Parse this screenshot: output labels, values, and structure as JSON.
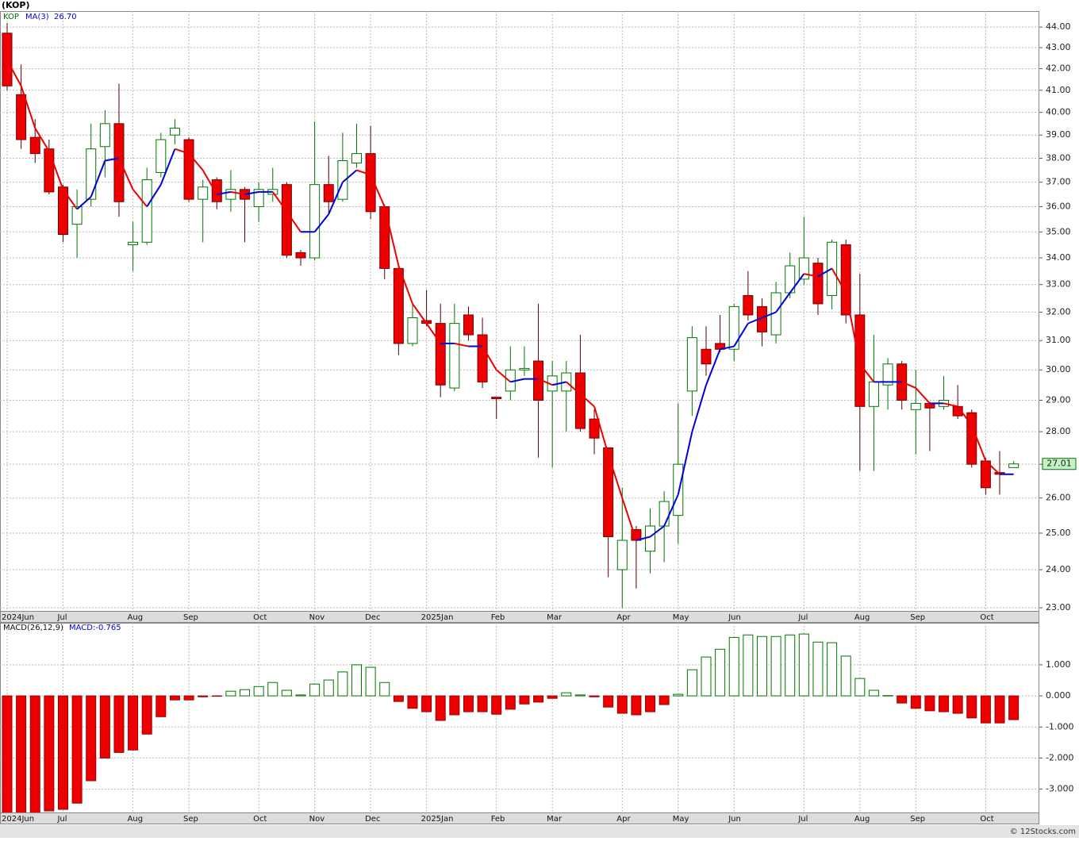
{
  "chart_data": [
    {
      "type": "candlestick",
      "title": "(KOP)",
      "symbol": "KOP",
      "categories": [
        "2024Jun",
        null,
        null,
        null,
        "Jul",
        null,
        null,
        null,
        null,
        "Aug",
        null,
        null,
        null,
        "Sep",
        null,
        null,
        null,
        null,
        "Oct",
        null,
        null,
        null,
        "Nov",
        null,
        null,
        null,
        "Dec",
        null,
        null,
        null,
        "2025Jan",
        null,
        null,
        null,
        null,
        "Feb",
        null,
        null,
        null,
        "Mar",
        null,
        null,
        null,
        null,
        "Apr",
        null,
        null,
        null,
        "May",
        null,
        null,
        null,
        "Jun",
        null,
        null,
        null,
        null,
        "Jul",
        null,
        null,
        null,
        "Aug",
        null,
        null,
        null,
        "Sep",
        null,
        null,
        null,
        null,
        "Oct",
        null,
        null
      ],
      "open": [
        43.7,
        40.8,
        38.9,
        38.4,
        36.8,
        35.3,
        36.3,
        38.5,
        39.5,
        34.5,
        34.6,
        37.4,
        39.0,
        38.8,
        36.3,
        37.1,
        36.3,
        36.7,
        36.0,
        36.5,
        36.9,
        34.2,
        34.0,
        36.9,
        36.3,
        37.8,
        38.2,
        36.0,
        33.6,
        30.9,
        31.7,
        31.6,
        29.4,
        31.9,
        31.2,
        29.1,
        29.3,
        30.0,
        30.3,
        29.3,
        29.3,
        29.9,
        28.4,
        27.5,
        24.0,
        25.1,
        24.5,
        25.2,
        25.5,
        29.3,
        30.7,
        30.9,
        30.7,
        32.6,
        32.2,
        31.2,
        32.7,
        33.2,
        33.8,
        32.6,
        34.5,
        31.9,
        28.8,
        29.5,
        30.2,
        28.7,
        28.9,
        28.8,
        28.8,
        28.6,
        27.1,
        26.75,
        26.9
      ],
      "high": [
        44.2,
        42.2,
        39.7,
        38.8,
        36.9,
        36.7,
        39.5,
        40.1,
        41.3,
        35.4,
        37.6,
        39.1,
        39.7,
        38.9,
        37.1,
        37.2,
        37.5,
        36.8,
        37.0,
        37.6,
        37.0,
        34.3,
        39.6,
        38.1,
        39.1,
        39.5,
        39.4,
        36.1,
        33.7,
        32.3,
        32.8,
        32.3,
        32.3,
        32.2,
        31.8,
        29.1,
        30.8,
        30.8,
        32.3,
        30.3,
        30.3,
        31.2,
        28.7,
        27.5,
        26.3,
        25.2,
        25.7,
        26.2,
        28.9,
        31.5,
        31.5,
        31.9,
        32.3,
        33.5,
        32.5,
        33.1,
        34.2,
        35.6,
        34.0,
        34.7,
        34.7,
        33.4,
        31.2,
        30.4,
        30.3,
        30.0,
        28.95,
        29.8,
        29.5,
        28.7,
        27.2,
        27.4,
        27.1
      ],
      "low": [
        41.0,
        38.4,
        37.8,
        36.5,
        34.6,
        34.0,
        36.0,
        37.2,
        35.6,
        33.5,
        34.5,
        37.2,
        38.6,
        36.2,
        34.6,
        35.9,
        35.8,
        34.6,
        35.4,
        36.2,
        34.0,
        33.7,
        33.9,
        35.7,
        36.2,
        37.6,
        35.5,
        33.2,
        30.5,
        30.8,
        31.5,
        29.1,
        29.3,
        31.0,
        29.4,
        28.4,
        29.0,
        29.8,
        27.2,
        26.9,
        28.0,
        28.0,
        27.3,
        23.8,
        23.0,
        23.5,
        23.9,
        24.2,
        24.7,
        28.5,
        29.8,
        30.6,
        30.3,
        31.7,
        30.8,
        30.9,
        32.5,
        33.0,
        31.9,
        32.1,
        31.6,
        26.8,
        26.8,
        28.7,
        28.7,
        27.3,
        27.4,
        28.7,
        28.4,
        26.9,
        26.1,
        26.1,
        26.9
      ],
      "close": [
        41.2,
        38.8,
        38.2,
        36.6,
        34.9,
        36.0,
        38.4,
        39.5,
        36.2,
        34.6,
        37.1,
        38.8,
        39.3,
        36.3,
        36.8,
        36.2,
        36.7,
        36.3,
        36.7,
        36.7,
        34.1,
        34.0,
        36.9,
        36.2,
        37.9,
        38.2,
        35.8,
        33.6,
        30.9,
        31.8,
        31.6,
        29.5,
        31.6,
        31.2,
        29.6,
        29.05,
        30.0,
        30.05,
        29.0,
        29.8,
        29.9,
        28.1,
        27.8,
        24.9,
        24.8,
        24.8,
        25.2,
        25.9,
        27.0,
        31.1,
        30.2,
        30.7,
        32.2,
        31.9,
        31.3,
        32.7,
        33.7,
        34.0,
        32.3,
        34.6,
        31.9,
        28.8,
        29.6,
        30.2,
        29.0,
        28.9,
        28.75,
        29.0,
        28.5,
        27.0,
        26.3,
        26.7,
        27.01
      ],
      "last_price_label": "27.01",
      "up_color": "#007700",
      "down_color": "#ee0000",
      "ma": {
        "name": "MA(3)",
        "last_label": "26.70",
        "rising_color": "#0000dd",
        "falling_color": "#ee0000",
        "values": [
          42.4,
          41.2,
          39.3,
          38.3,
          36.7,
          35.9,
          36.4,
          37.9,
          38.0,
          36.7,
          36.0,
          36.9,
          38.4,
          38.2,
          37.5,
          36.5,
          36.6,
          36.5,
          36.6,
          36.6,
          35.8,
          35.0,
          35.0,
          35.7,
          37.0,
          37.5,
          37.3,
          36.0,
          33.7,
          32.3,
          31.6,
          30.9,
          30.9,
          30.8,
          30.8,
          30.0,
          29.6,
          29.7,
          29.7,
          29.5,
          29.6,
          29.2,
          28.8,
          27.3,
          26.0,
          24.8,
          24.9,
          25.2,
          26.1,
          28.0,
          29.5,
          30.7,
          30.8,
          31.6,
          31.8,
          32.0,
          32.7,
          33.4,
          33.3,
          33.6,
          32.7,
          30.2,
          29.6,
          29.6,
          29.6,
          29.4,
          28.9,
          28.9,
          28.8,
          28.2,
          27.1,
          26.7,
          26.7
        ]
      },
      "log_scale": true,
      "grid": true,
      "ylim": [
        22.92,
        44.79
      ],
      "yticks": [
        {
          "value": 23,
          "label": "23.00"
        },
        {
          "value": 24,
          "label": "24.00"
        },
        {
          "value": 25,
          "label": "25.00"
        },
        {
          "value": 26,
          "label": "26.00"
        },
        {
          "value": 27,
          "label": "27.00"
        },
        {
          "value": 28,
          "label": "28.00"
        },
        {
          "value": 29,
          "label": "29.00"
        },
        {
          "value": 30,
          "label": "30.00"
        },
        {
          "value": 31,
          "label": "31.00"
        },
        {
          "value": 32,
          "label": "32.00"
        },
        {
          "value": 33,
          "label": "33.00"
        },
        {
          "value": 34,
          "label": "34.00"
        },
        {
          "value": 35,
          "label": "35.00"
        },
        {
          "value": 36,
          "label": "36.00"
        },
        {
          "value": 37,
          "label": "37.00"
        },
        {
          "value": 38,
          "label": "38.00"
        },
        {
          "value": 39,
          "label": "39.00"
        },
        {
          "value": 40,
          "label": "40.00"
        },
        {
          "value": 41,
          "label": "41.00"
        },
        {
          "value": 42,
          "label": "42.00"
        },
        {
          "value": 43,
          "label": "43.00"
        },
        {
          "value": 44,
          "label": "44.00"
        }
      ]
    },
    {
      "type": "bar",
      "title": "MACD(26,12,9)",
      "value_label": "MACD:-0.765",
      "categories": [
        "2024Jun",
        null,
        null,
        null,
        "Jul",
        null,
        null,
        null,
        null,
        "Aug",
        null,
        null,
        null,
        "Sep",
        null,
        null,
        null,
        null,
        "Oct",
        null,
        null,
        null,
        "Nov",
        null,
        null,
        null,
        "Dec",
        null,
        null,
        null,
        "2025Jan",
        null,
        null,
        null,
        null,
        "Feb",
        null,
        null,
        null,
        "Mar",
        null,
        null,
        null,
        null,
        "Apr",
        null,
        null,
        null,
        "May",
        null,
        null,
        null,
        "Jun",
        null,
        null,
        null,
        null,
        "Jul",
        null,
        null,
        null,
        "Aug",
        null,
        null,
        null,
        "Sep",
        null,
        null,
        null,
        null,
        "Oct",
        null,
        null
      ],
      "values": [
        -3.9,
        -3.85,
        -3.8,
        -3.7,
        -3.65,
        -3.45,
        -2.73,
        -2.0,
        -1.82,
        -1.74,
        -1.23,
        -0.67,
        -0.13,
        -0.13,
        -0.03,
        -0.01,
        0.15,
        0.2,
        0.3,
        0.43,
        0.18,
        0.03,
        0.38,
        0.51,
        0.77,
        1.0,
        0.92,
        0.43,
        -0.18,
        -0.4,
        -0.51,
        -0.79,
        -0.61,
        -0.51,
        -0.51,
        -0.59,
        -0.43,
        -0.26,
        -0.2,
        -0.08,
        0.1,
        0.03,
        -0.03,
        -0.36,
        -0.56,
        -0.61,
        -0.51,
        -0.28,
        0.05,
        0.84,
        1.25,
        1.5,
        1.88,
        1.96,
        1.91,
        1.91,
        1.96,
        1.99,
        1.73,
        1.71,
        1.28,
        0.56,
        0.18,
        0.01,
        -0.23,
        -0.4,
        -0.48,
        -0.51,
        -0.56,
        -0.71,
        -0.87,
        -0.87,
        -0.765
      ],
      "positive_color": "#007700",
      "negative_color": "#ee0000",
      "grid": true,
      "ylim": [
        -3.75,
        2.35
      ],
      "yticks": [
        {
          "value": -3,
          "label": "-3.000"
        },
        {
          "value": -2,
          "label": "-2.000"
        },
        {
          "value": -1,
          "label": "-1.000"
        },
        {
          "value": 0,
          "label": "0.000"
        },
        {
          "value": 1,
          "label": "1.000"
        }
      ]
    }
  ],
  "credit": "© 12Stocks.com"
}
